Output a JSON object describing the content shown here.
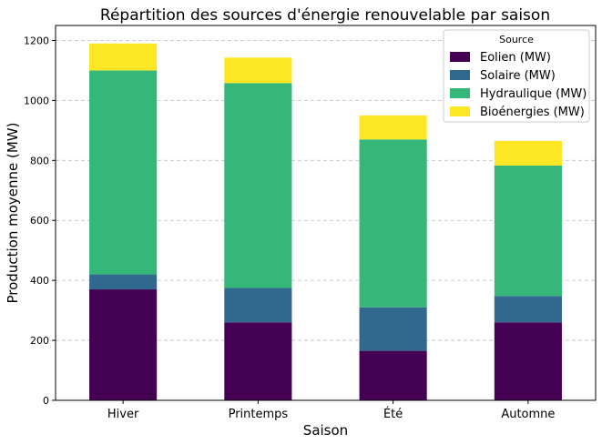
{
  "chart_data": {
    "type": "bar",
    "stacked": true,
    "title": "Répartition des sources d'énergie renouvelable par saison",
    "xlabel": "Saison",
    "ylabel": "Production moyenne (MW)",
    "categories": [
      "Hiver",
      "Printemps",
      "Été",
      "Automne"
    ],
    "series": [
      {
        "name": "Eolien (MW)",
        "color": "#440154",
        "values": [
          370,
          260,
          165,
          260
        ]
      },
      {
        "name": "Solaire (MW)",
        "color": "#31688e",
        "values": [
          50,
          115,
          145,
          88
        ]
      },
      {
        "name": "Hydraulique (MW)",
        "color": "#35b779",
        "values": [
          680,
          683,
          560,
          435
        ]
      },
      {
        "name": "Bioénergies (MW)",
        "color": "#fde725",
        "values": [
          90,
          85,
          80,
          82
        ]
      }
    ],
    "ylim": [
      0,
      1250
    ],
    "yticks": [
      0,
      200,
      400,
      600,
      800,
      1000,
      1200
    ],
    "grid": "y-dashed",
    "legend": {
      "title": "Source",
      "placement": "top-right"
    }
  }
}
